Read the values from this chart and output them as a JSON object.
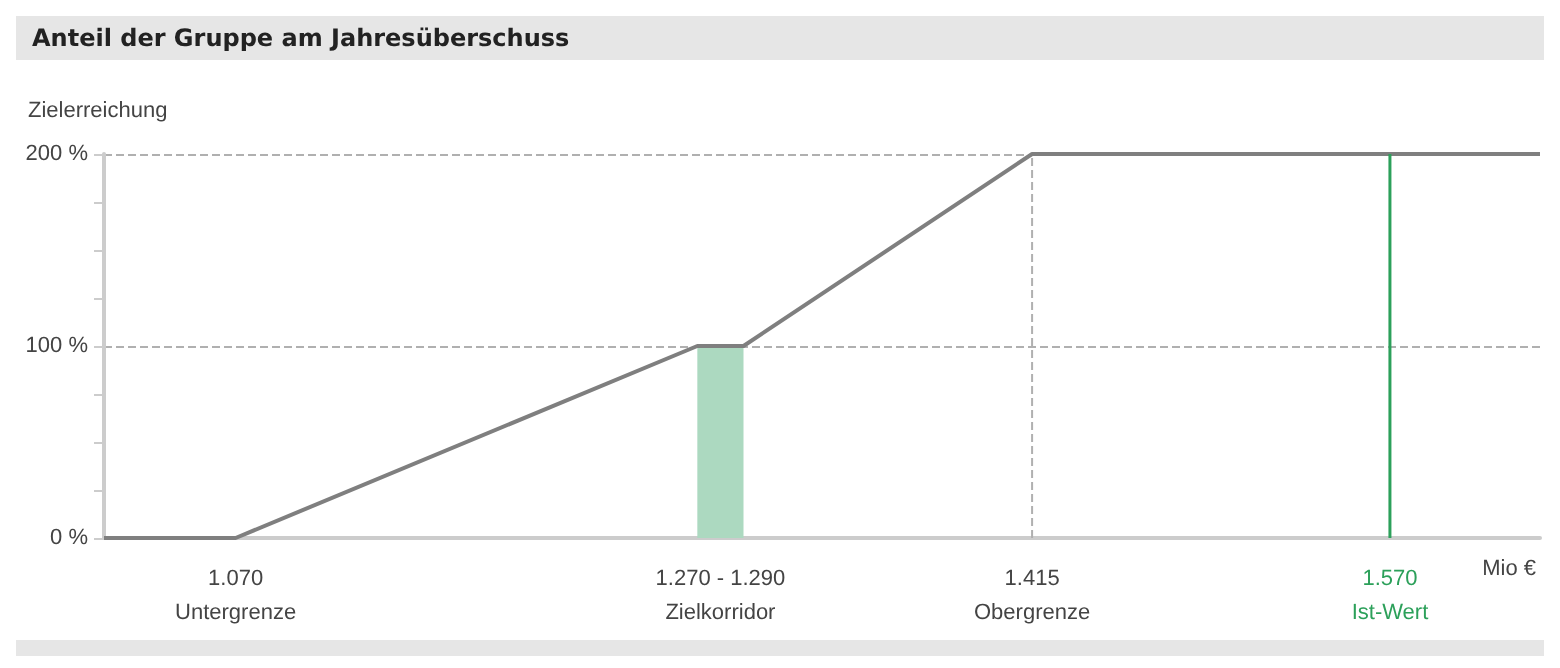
{
  "chart_data": {
    "type": "line",
    "title": "Anteil der Gruppe am Jahresüberschuss",
    "ylabel": "Zielerreichung",
    "xlabel": "Mio €",
    "series": [
      {
        "type": "area",
        "x": [
          1.27,
          1.29
        ],
        "values": [
          100,
          100
        ],
        "color": "#acd9c0"
      },
      {
        "x": [
          1.013,
          1.07,
          1.27,
          1.29,
          1.415,
          1.635
        ],
        "values": [
          0,
          0,
          100,
          100,
          200,
          200
        ],
        "color": "#7f7f7f"
      }
    ],
    "xlim": [
      1.013,
      1.635
    ],
    "xticks": [
      {
        "value": 1.07,
        "label": "1.070\nUntergrenze"
      },
      {
        "value": 1.28,
        "label": "1.270 - 1.290\nZielkorridor"
      },
      {
        "value": 1.415,
        "label": "1.415\nObergrenze"
      },
      {
        "value": 1.57,
        "label": "1.570\nIst-Wert"
      }
    ],
    "ylim": [
      0,
      200
    ],
    "yticks": [
      {
        "value": 0,
        "label": "0 %"
      },
      {
        "value": 25,
        "label": null
      },
      {
        "value": 50,
        "label": null
      },
      {
        "value": 75,
        "label": null
      },
      {
        "value": 100,
        "label": "100 %"
      },
      {
        "value": 125,
        "label": null
      },
      {
        "value": 150,
        "label": null
      },
      {
        "value": 175,
        "label": null
      },
      {
        "value": 200,
        "label": "200 %"
      }
    ],
    "ref_lines": [
      {
        "axis": "x",
        "value": 1.415,
        "color": "#b0b0b0",
        "line_style": "dashed"
      },
      {
        "axis": "x",
        "value": 1.57,
        "color": "#2ca05a",
        "line_style": "solid"
      }
    ],
    "grid": "y",
    "marker": "none"
  }
}
